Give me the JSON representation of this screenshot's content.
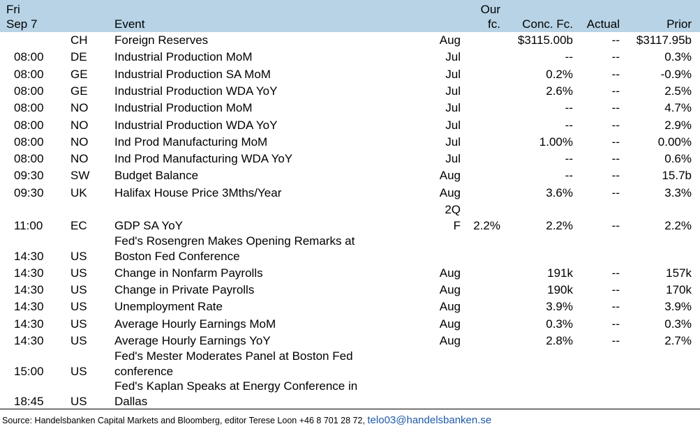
{
  "header": {
    "day": "Fri",
    "date": "Sep 7",
    "event": "Event",
    "our_fc_line1": "Our",
    "our_fc_line2": "fc.",
    "conc_fc": "Conc. Fc.",
    "actual": "Actual",
    "prior": "Prior"
  },
  "rows": [
    {
      "time": "",
      "country": "CH",
      "event": "Foreign Reserves",
      "period": "Aug",
      "our": "",
      "conc": "$3115.00b",
      "actual": "--",
      "prior": "$3117.95b"
    },
    {
      "time": "08:00",
      "country": "DE",
      "event": "Industrial Production MoM",
      "period": "Jul",
      "our": "",
      "conc": "--",
      "actual": "--",
      "prior": "0.3%"
    },
    {
      "time": "08:00",
      "country": "GE",
      "event": "Industrial Production SA MoM",
      "period": "Jul",
      "our": "",
      "conc": "0.2%",
      "actual": "--",
      "prior": "-0.9%"
    },
    {
      "time": "08:00",
      "country": "GE",
      "event": "Industrial Production WDA YoY",
      "period": "Jul",
      "our": "",
      "conc": "2.6%",
      "actual": "--",
      "prior": "2.5%"
    },
    {
      "time": "08:00",
      "country": "NO",
      "event": "Industrial Production MoM",
      "period": "Jul",
      "our": "",
      "conc": "--",
      "actual": "--",
      "prior": "4.7%"
    },
    {
      "time": "08:00",
      "country": "NO",
      "event": "Industrial Production WDA YoY",
      "period": "Jul",
      "our": "",
      "conc": "--",
      "actual": "--",
      "prior": "2.9%"
    },
    {
      "time": "08:00",
      "country": "NO",
      "event": "Ind Prod Manufacturing MoM",
      "period": "Jul",
      "our": "",
      "conc": "1.00%",
      "actual": "--",
      "prior": "0.00%"
    },
    {
      "time": "08:00",
      "country": "NO",
      "event": "Ind Prod Manufacturing WDA YoY",
      "period": "Jul",
      "our": "",
      "conc": "--",
      "actual": "--",
      "prior": "0.6%"
    },
    {
      "time": "09:30",
      "country": "SW",
      "event": "Budget Balance",
      "period": "Aug",
      "our": "",
      "conc": "--",
      "actual": "--",
      "prior": "15.7b"
    },
    {
      "time": "09:30",
      "country": "UK",
      "event": "Halifax House Price 3Mths/Year",
      "period": "Aug",
      "our": "",
      "conc": "3.6%",
      "actual": "--",
      "prior": "3.3%"
    }
  ],
  "gdp_row": {
    "time": "11:00",
    "country": "EC",
    "event": "GDP SA YoY",
    "period_line1": "2Q",
    "period_line2": "F",
    "our": "2.2%",
    "conc": "2.2%",
    "actual": "--",
    "prior": "2.2%"
  },
  "fed_rosengren": {
    "time": "14:30",
    "country": "US",
    "event_line1": "Fed's Rosengren Makes Opening Remarks at",
    "event_line2": "Boston Fed Conference"
  },
  "us_rows": [
    {
      "time": "14:30",
      "country": "US",
      "event": "Change in Nonfarm Payrolls",
      "period": "Aug",
      "conc": "191k",
      "actual": "--",
      "prior": "157k"
    },
    {
      "time": "14:30",
      "country": "US",
      "event": "Change in Private Payrolls",
      "period": "Aug",
      "conc": "190k",
      "actual": "--",
      "prior": "170k"
    },
    {
      "time": "14:30",
      "country": "US",
      "event": "Unemployment Rate",
      "period": "Aug",
      "conc": "3.9%",
      "actual": "--",
      "prior": "3.9%"
    },
    {
      "time": "14:30",
      "country": "US",
      "event": "Average Hourly Earnings MoM",
      "period": "Aug",
      "conc": "0.3%",
      "actual": "--",
      "prior": "0.3%"
    },
    {
      "time": "14:30",
      "country": "US",
      "event": "Average Hourly Earnings YoY",
      "period": "Aug",
      "conc": "2.8%",
      "actual": "--",
      "prior": "2.7%"
    }
  ],
  "fed_mester": {
    "time": "15:00",
    "country": "US",
    "event_line1": "Fed's Mester Moderates Panel at Boston Fed",
    "event_line2": "conference"
  },
  "fed_kaplan": {
    "time": "18:45",
    "country": "US",
    "event_line1": "Fed's Kaplan Speaks at Energy Conference in",
    "event_line2": "Dallas"
  },
  "footer": {
    "source": "Source: Handelsbanken Capital Markets and Bloomberg, editor Terese Loon +46 8 701 28 72,",
    "email": "telo03@handelsbanken.se"
  },
  "colors": {
    "header_bg": "#b7d3e5",
    "link": "#1f5aa8"
  }
}
